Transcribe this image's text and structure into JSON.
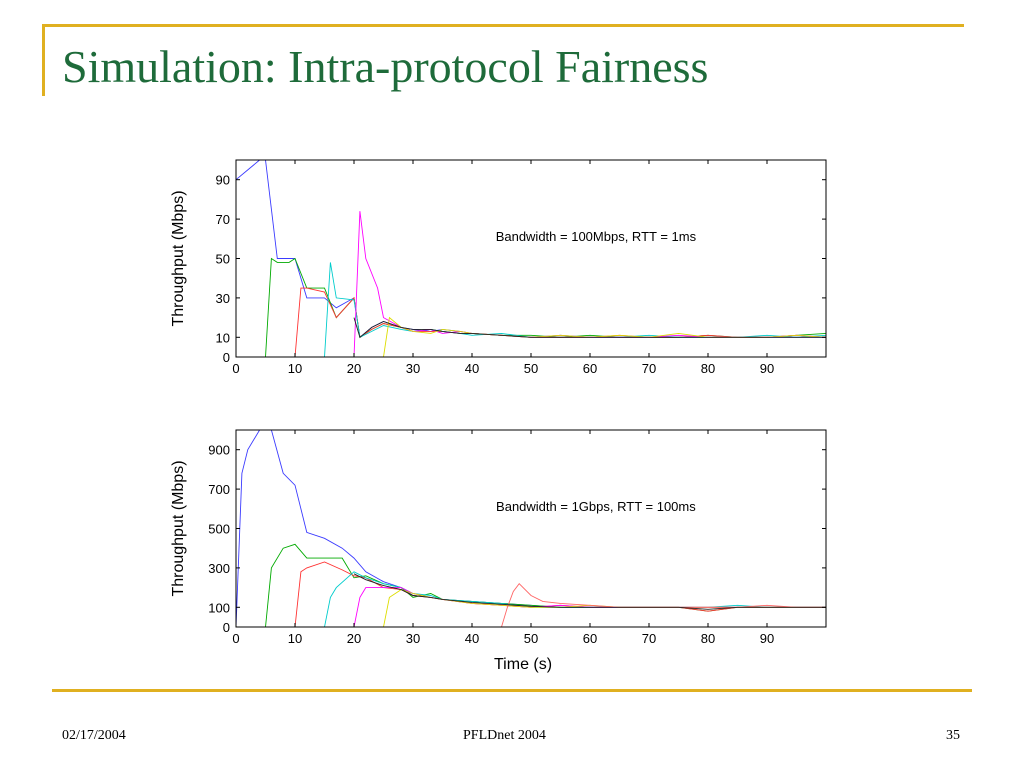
{
  "slide": {
    "title": "Simulation: Intra-protocol Fairness",
    "date": "02/17/2004",
    "event": "PFLDnet 2004",
    "page_number": "35",
    "accent_color": "#e0b020",
    "title_color": "#1e6b3a"
  },
  "chart_data": [
    {
      "type": "line",
      "annotation": "Bandwidth = 100Mbps, RTT = 1ms",
      "ylabel": "Throughput (Mbps)",
      "xlabel": "",
      "xlim": [
        0,
        100
      ],
      "ylim": [
        0,
        100
      ],
      "xticks": [
        0,
        10,
        20,
        30,
        40,
        50,
        60,
        70,
        80,
        90
      ],
      "yticks": [
        0,
        10,
        30,
        50,
        70,
        90
      ],
      "grid": false,
      "series": [
        {
          "color": "#3b3bff",
          "x": [
            0,
            2,
            4,
            5,
            7,
            10,
            12,
            15,
            17,
            20,
            21,
            23,
            25,
            28,
            30,
            33,
            35,
            38,
            40,
            45,
            50,
            55,
            60,
            65,
            70,
            75,
            80,
            85,
            90,
            95,
            100
          ],
          "y": [
            90,
            95,
            100,
            100,
            50,
            50,
            30,
            30,
            25,
            30,
            10,
            15,
            18,
            15,
            14,
            13,
            14,
            13,
            12,
            11,
            10,
            10,
            10,
            10,
            10,
            10,
            10,
            10,
            10,
            10,
            10
          ]
        },
        {
          "color": "#00aa00",
          "x": [
            5,
            6,
            7,
            9,
            10,
            12,
            15,
            17,
            20,
            21,
            23,
            25,
            28,
            30,
            33,
            35,
            38,
            40,
            45,
            50,
            55,
            60,
            65,
            70,
            75,
            80,
            85,
            90,
            95,
            100
          ],
          "y": [
            0,
            50,
            48,
            48,
            50,
            35,
            35,
            20,
            30,
            10,
            14,
            17,
            15,
            13,
            14,
            13,
            12,
            12,
            11,
            11,
            10,
            11,
            10,
            10,
            10,
            11,
            10,
            10,
            11,
            12
          ]
        },
        {
          "color": "#ff3333",
          "x": [
            10,
            11,
            12,
            15,
            17,
            20,
            21,
            23,
            25,
            28,
            30,
            33,
            35,
            38,
            40,
            45,
            50,
            55,
            60,
            65,
            70,
            75,
            80,
            85,
            90,
            95,
            100
          ],
          "y": [
            0,
            35,
            35,
            33,
            20,
            30,
            10,
            14,
            17,
            15,
            13,
            13,
            13,
            12,
            12,
            11,
            10,
            10,
            10,
            11,
            10,
            10,
            11,
            10,
            10,
            11,
            10
          ]
        },
        {
          "color": "#00cccc",
          "x": [
            15,
            16,
            17,
            20,
            21,
            23,
            25,
            28,
            30,
            33,
            35,
            38,
            40,
            45,
            50,
            55,
            60,
            65,
            70,
            75,
            80,
            85,
            90,
            95,
            100
          ],
          "y": [
            0,
            48,
            30,
            29,
            10,
            13,
            16,
            14,
            13,
            14,
            13,
            12,
            11,
            12,
            10,
            11,
            10,
            10,
            11,
            10,
            10,
            10,
            11,
            10,
            11
          ]
        },
        {
          "color": "#ff00ff",
          "x": [
            20,
            21,
            22,
            24,
            25,
            28,
            30,
            33,
            35,
            38,
            40,
            45,
            50,
            55,
            60,
            65,
            70,
            75,
            80,
            85,
            90,
            95,
            100
          ],
          "y": [
            0,
            74,
            50,
            35,
            20,
            15,
            13,
            14,
            12,
            13,
            12,
            11,
            10,
            11,
            10,
            10,
            10,
            11,
            10,
            10,
            10,
            11,
            10
          ]
        },
        {
          "color": "#dddd00",
          "x": [
            25,
            26,
            28,
            30,
            33,
            35,
            38,
            40,
            45,
            50,
            55,
            60,
            65,
            70,
            75,
            80,
            85,
            90,
            95,
            100
          ],
          "y": [
            0,
            20,
            15,
            13,
            12,
            14,
            13,
            12,
            11,
            10,
            11,
            10,
            11,
            10,
            12,
            10,
            10,
            10,
            11,
            10
          ]
        },
        {
          "color": "#222222",
          "x": [
            20,
            21,
            23,
            25,
            28,
            30,
            33,
            35,
            38,
            40,
            45,
            50,
            55,
            60,
            65,
            70,
            75,
            80,
            85,
            90,
            95,
            100
          ],
          "y": [
            20,
            10,
            15,
            18,
            15,
            14,
            14,
            13,
            12,
            12,
            11,
            10,
            10,
            10,
            10,
            10,
            10,
            10,
            10,
            10,
            10,
            10
          ]
        }
      ]
    },
    {
      "type": "line",
      "annotation": "Bandwidth = 1Gbps, RTT = 100ms",
      "ylabel": "Throughput (Mbps)",
      "xlabel": "Time (s)",
      "xlim": [
        0,
        100
      ],
      "ylim": [
        0,
        1000
      ],
      "xticks": [
        0,
        10,
        20,
        30,
        40,
        50,
        60,
        70,
        80,
        90
      ],
      "yticks": [
        0,
        100,
        300,
        500,
        700,
        900
      ],
      "grid": false,
      "series": [
        {
          "color": "#3b3bff",
          "x": [
            0,
            1,
            2,
            4,
            6,
            8,
            10,
            12,
            15,
            18,
            20,
            22,
            25,
            28,
            30,
            33,
            35,
            40,
            45,
            50,
            55,
            60,
            65,
            70,
            75,
            80,
            85,
            90,
            95,
            100
          ],
          "y": [
            0,
            780,
            900,
            1000,
            1000,
            780,
            720,
            480,
            450,
            400,
            350,
            280,
            230,
            200,
            160,
            150,
            140,
            130,
            120,
            110,
            100,
            100,
            100,
            100,
            100,
            100,
            100,
            100,
            100,
            100
          ]
        },
        {
          "color": "#00aa00",
          "x": [
            5,
            6,
            8,
            10,
            12,
            15,
            18,
            20,
            22,
            25,
            28,
            30,
            33,
            35,
            40,
            45,
            50,
            55,
            60,
            65,
            70,
            75,
            80,
            85,
            90,
            95,
            100
          ],
          "y": [
            0,
            300,
            400,
            420,
            350,
            350,
            350,
            250,
            260,
            220,
            200,
            150,
            170,
            140,
            130,
            120,
            110,
            100,
            100,
            100,
            100,
            100,
            80,
            100,
            100,
            100,
            100
          ]
        },
        {
          "color": "#ff3333",
          "x": [
            10,
            11,
            12,
            15,
            18,
            20,
            22,
            25,
            28,
            30,
            33,
            35,
            40,
            45,
            50,
            55,
            60,
            65,
            70,
            75,
            80,
            85,
            90,
            95,
            100
          ],
          "y": [
            0,
            280,
            300,
            330,
            290,
            260,
            250,
            200,
            190,
            160,
            150,
            140,
            120,
            110,
            100,
            110,
            100,
            100,
            100,
            100,
            80,
            100,
            100,
            100,
            100
          ]
        },
        {
          "color": "#00cccc",
          "x": [
            15,
            16,
            17,
            20,
            22,
            25,
            28,
            30,
            33,
            35,
            40,
            45,
            50,
            55,
            60,
            65,
            70,
            75,
            80,
            85,
            90,
            95,
            100
          ],
          "y": [
            0,
            150,
            200,
            280,
            250,
            220,
            200,
            170,
            160,
            140,
            130,
            120,
            100,
            100,
            100,
            100,
            100,
            100,
            100,
            110,
            100,
            100,
            100
          ]
        },
        {
          "color": "#ff00ff",
          "x": [
            20,
            21,
            22,
            25,
            28,
            30,
            33,
            35,
            40,
            45,
            50,
            55,
            60,
            65,
            70,
            75,
            80,
            85,
            90,
            95,
            100
          ],
          "y": [
            0,
            150,
            200,
            200,
            200,
            170,
            150,
            140,
            120,
            110,
            100,
            110,
            100,
            100,
            100,
            100,
            100,
            100,
            100,
            100,
            100
          ]
        },
        {
          "color": "#dddd00",
          "x": [
            25,
            26,
            28,
            30,
            33,
            35,
            40,
            45,
            50,
            55,
            60,
            65,
            70,
            75,
            80,
            85,
            90,
            95,
            100
          ],
          "y": [
            0,
            150,
            190,
            170,
            150,
            140,
            120,
            110,
            100,
            100,
            110,
            100,
            100,
            100,
            100,
            100,
            100,
            100,
            100
          ]
        },
        {
          "color": "#ff6666",
          "x": [
            40,
            45,
            46,
            47,
            48,
            50,
            52,
            55,
            60,
            65,
            70,
            75,
            80,
            85,
            90,
            95,
            100
          ],
          "y": [
            0,
            0,
            100,
            180,
            220,
            160,
            130,
            120,
            110,
            100,
            100,
            100,
            100,
            100,
            110,
            100,
            100
          ]
        },
        {
          "color": "#222222",
          "x": [
            20,
            22,
            25,
            28,
            30,
            33,
            35,
            40,
            45,
            50,
            55,
            60,
            65,
            70,
            75,
            80,
            85,
            90,
            95,
            100
          ],
          "y": [
            270,
            240,
            210,
            190,
            160,
            150,
            140,
            125,
            115,
            105,
            100,
            100,
            100,
            100,
            100,
            90,
            100,
            100,
            100,
            100
          ]
        }
      ]
    }
  ]
}
